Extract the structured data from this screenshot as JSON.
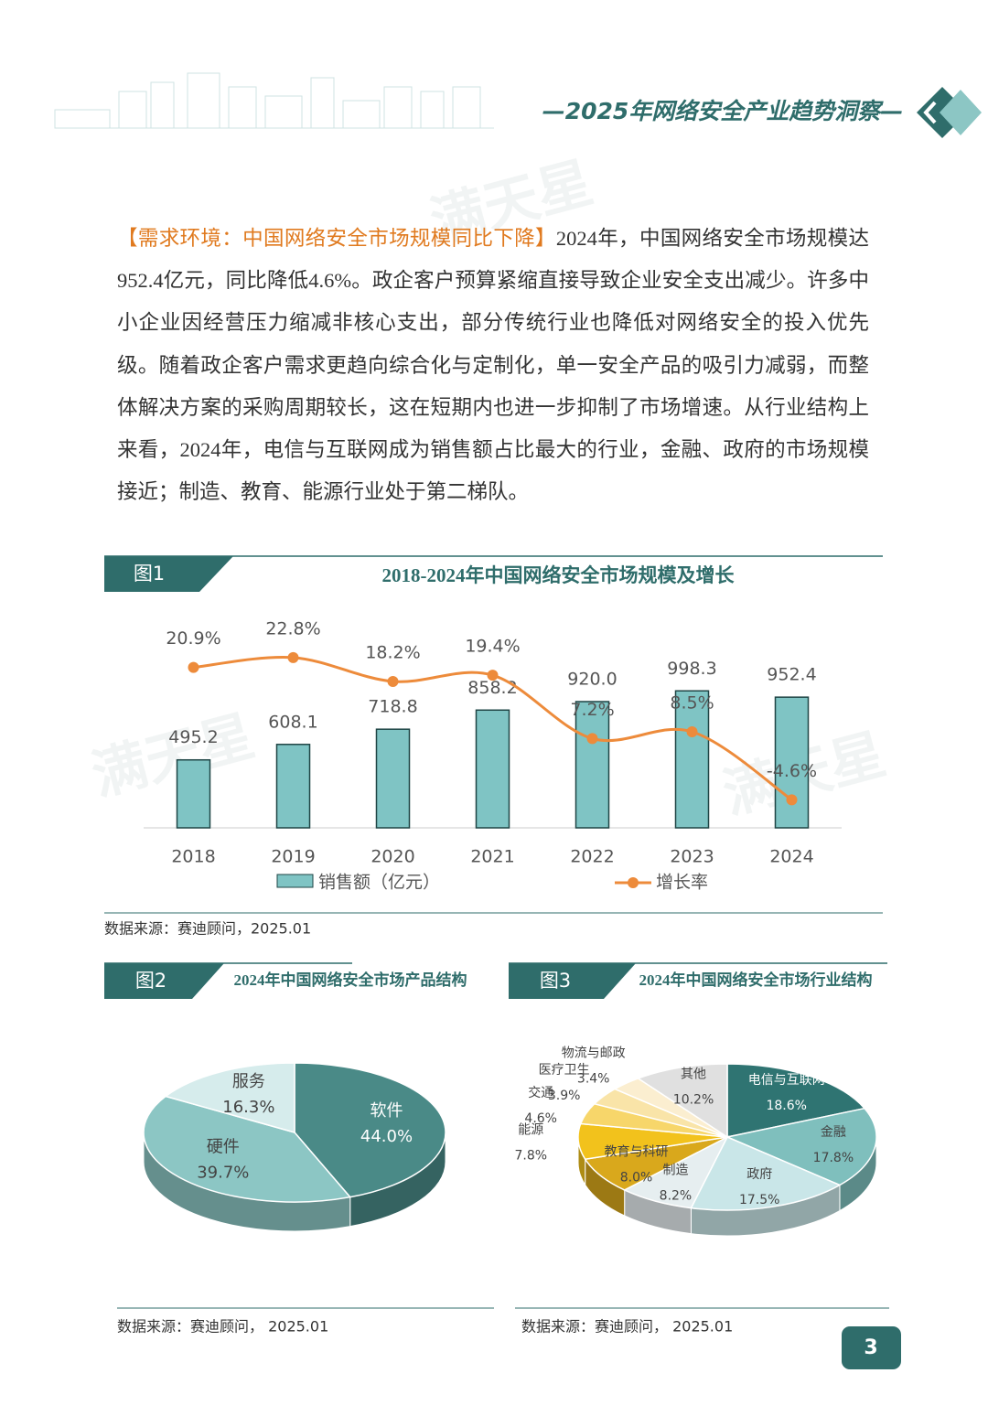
{
  "header": {
    "title": "—2025年网络安全产业趋势洞察—"
  },
  "watermark": "满天星",
  "paragraph": {
    "highlight": "【需求环境：中国网络安全市场规模同比下降】",
    "text": "2024年，中国网络安全市场规模达952.4亿元，同比降低4.6%。政企客户预算紧缩直接导致企业安全支出减少。许多中小企业因经营压力缩减非核心支出，部分传统行业也降低对网络安全的投入优先级。随着政企客户需求更趋向综合化与定制化，单一安全产品的吸引力减弱，而整体解决方案的采购周期较长，这在短期内也进一步抑制了市场增速。从行业结构上来看，2024年，电信与互联网成为销售额占比最大的行业，金融、政府的市场规模接近；制造、教育、能源行业处于第二梯队。"
  },
  "figures": [
    {
      "tag": "图1",
      "source": "数据来源：赛迪顾问，2025.01"
    },
    {
      "tag": "图2",
      "source": "数据来源：赛迪顾问， 2025.01"
    },
    {
      "tag": "图3",
      "source": "数据来源：赛迪顾问， 2025.01"
    }
  ],
  "chart_data": [
    {
      "type": "bar",
      "title": "2018-2024年中国网络安全市场规模及增长",
      "categories": [
        "2018",
        "2019",
        "2020",
        "2021",
        "2022",
        "2023",
        "2024"
      ],
      "series": [
        {
          "name": "销售额（亿元）",
          "type": "bar",
          "color": "#7fc4c4",
          "values": [
            495.2,
            608.1,
            718.8,
            858.2,
            920.0,
            998.3,
            952.4
          ],
          "value_labels": [
            "495.2",
            "608.1",
            "718.8",
            "858.2",
            "920.0",
            "998.3",
            "952.4"
          ]
        },
        {
          "name": "增长率",
          "type": "line",
          "axis": "y2",
          "color": "#ed8b3b",
          "values": [
            20.9,
            22.8,
            18.2,
            19.4,
            7.2,
            8.5,
            -4.6
          ],
          "value_labels": [
            "20.9%",
            "22.8%",
            "18.2%",
            "19.4%",
            "7.2%",
            "8.5%",
            "-4.6%"
          ]
        }
      ],
      "ylim": [
        0,
        1400
      ],
      "y2lim": [
        -10,
        27
      ]
    },
    {
      "type": "pie",
      "title": "2024年中国网络安全市场产品结构",
      "categories": [
        "软件",
        "硬件",
        "服务"
      ],
      "values": [
        44.0,
        39.7,
        16.3
      ],
      "value_labels": [
        "44.0%",
        "39.7%",
        "16.3%"
      ],
      "colors": [
        "#4a8a87",
        "#8cc6c4",
        "#d6ecec"
      ]
    },
    {
      "type": "pie",
      "title": "2024年中国网络安全市场行业结构",
      "categories": [
        "电信与互联网",
        "金融",
        "政府",
        "制造",
        "教育与科研",
        "能源",
        "交通",
        "医疗卫生",
        "物流与邮政",
        "其他"
      ],
      "values": [
        18.6,
        17.8,
        17.5,
        8.2,
        8.0,
        7.8,
        4.6,
        3.9,
        3.4,
        10.2
      ],
      "value_labels": [
        "18.6%",
        "17.8%",
        "17.5%",
        "8.2%",
        "8.0%",
        "7.8%",
        "4.6%",
        "3.9%",
        "3.4%",
        "10.2%"
      ],
      "colors": [
        "#2f7472",
        "#7fbfbd",
        "#c9e6e8",
        "#e6eef0",
        "#d9a81c",
        "#f2c21c",
        "#f7d66a",
        "#f9e4a8",
        "#fbeed0",
        "#e0e0e0"
      ]
    }
  ],
  "page_number": "3"
}
